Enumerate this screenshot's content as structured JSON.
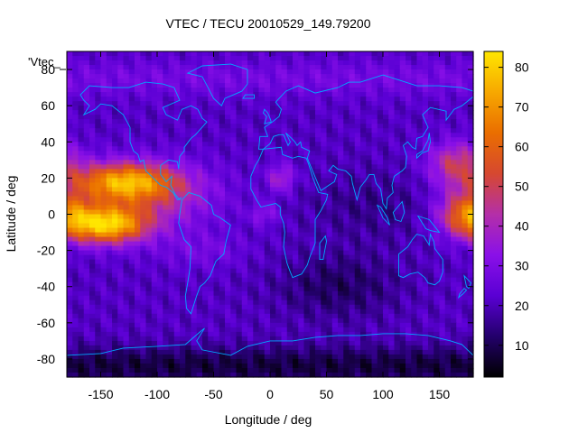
{
  "chart_data": {
    "type": "heatmap",
    "title": "VTEC / TECU 20010529_149.79200",
    "xlabel": "Longitude / deg",
    "ylabel": "Latitude / deg",
    "xlim": [
      -180,
      180
    ],
    "ylim": [
      -90,
      90
    ],
    "x_ticks": [
      -150,
      -100,
      -50,
      0,
      50,
      100,
      150
    ],
    "y_ticks": [
      -80,
      -60,
      -40,
      -20,
      0,
      20,
      40,
      60,
      80
    ],
    "colorbar": {
      "range": [
        2,
        84
      ],
      "ticks": [
        10,
        20,
        30,
        40,
        50,
        60,
        70,
        80
      ],
      "palette": "black-purple-blue-magenta-red-orange-yellow",
      "colors": [
        "#000000",
        "#23006b",
        "#5a00d4",
        "#8a10e8",
        "#b42fa8",
        "#d64830",
        "#ea6e00",
        "#f7a800",
        "#ffe600"
      ]
    },
    "legend": {
      "label": "'Vtec_",
      "placement": "top-left"
    },
    "overlay": "continent coastlines",
    "overlay_color": "#00a8ff",
    "grid": false,
    "notes": "Equatorial anomaly crests peak near lon -150 to -120 (~80 TECU) and lon 170-180 (~60 TECU); minimum (~2-5 TECU) over southern high latitudes."
  }
}
